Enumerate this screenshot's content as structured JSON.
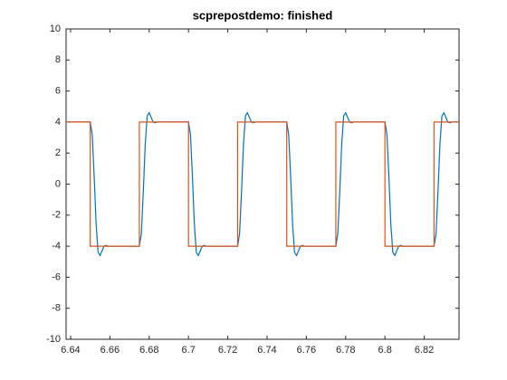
{
  "chart_data": {
    "type": "line",
    "title": "scprepostdemo: finished",
    "xlim": [
      6.6377,
      6.8377
    ],
    "ylim": [
      -10,
      10
    ],
    "xticks": [
      6.64,
      6.66,
      6.68,
      6.7,
      6.72,
      6.74,
      6.76,
      6.78,
      6.8,
      6.82
    ],
    "yticks": [
      -10,
      -8,
      -6,
      -4,
      -2,
      0,
      2,
      4,
      6,
      8,
      10
    ],
    "grid": false,
    "series": [
      {
        "color": "#0072BD",
        "x": [
          6.6377,
          6.65,
          6.651,
          6.652,
          6.653,
          6.654,
          6.655,
          6.656,
          6.657,
          6.658,
          6.659,
          6.66,
          6.675,
          6.676,
          6.677,
          6.678,
          6.679,
          6.68,
          6.681,
          6.682,
          6.683,
          6.684,
          6.685,
          6.7,
          6.701,
          6.702,
          6.703,
          6.704,
          6.705,
          6.706,
          6.707,
          6.708,
          6.709,
          6.71,
          6.725,
          6.726,
          6.727,
          6.728,
          6.729,
          6.73,
          6.731,
          6.732,
          6.733,
          6.734,
          6.735,
          6.75,
          6.751,
          6.752,
          6.753,
          6.754,
          6.755,
          6.756,
          6.757,
          6.758,
          6.759,
          6.76,
          6.775,
          6.776,
          6.777,
          6.778,
          6.779,
          6.78,
          6.781,
          6.782,
          6.783,
          6.784,
          6.785,
          6.8,
          6.801,
          6.802,
          6.803,
          6.804,
          6.805,
          6.806,
          6.807,
          6.808,
          6.809,
          6.81,
          6.825,
          6.826,
          6.827,
          6.828,
          6.829,
          6.83,
          6.831,
          6.832,
          6.833,
          6.834,
          6.835,
          6.8377
        ],
        "values": [
          4,
          4,
          3.2,
          0.5,
          -2.6,
          -4.4,
          -4.6,
          -4.3,
          -4,
          -3.95,
          -4,
          -4,
          -4,
          -3.2,
          -0.5,
          2.6,
          4.4,
          4.6,
          4.3,
          4,
          3.95,
          4,
          4,
          4,
          3.2,
          0.5,
          -2.6,
          -4.4,
          -4.6,
          -4.3,
          -4,
          -3.95,
          -4,
          -4,
          -4,
          -3.2,
          -0.5,
          2.6,
          4.4,
          4.6,
          4.3,
          4,
          3.95,
          4,
          4,
          4,
          3.2,
          0.5,
          -2.6,
          -4.4,
          -4.6,
          -4.3,
          -4,
          -3.95,
          -4,
          -4,
          -4,
          -3.2,
          -0.5,
          2.6,
          4.4,
          4.6,
          4.3,
          4,
          3.95,
          4,
          4,
          4,
          3.2,
          0.5,
          -2.6,
          -4.4,
          -4.6,
          -4.3,
          -4,
          -3.95,
          -4,
          -4,
          -4,
          -3.2,
          -0.5,
          2.6,
          4.4,
          4.6,
          4.3,
          4,
          3.95,
          4,
          4,
          4
        ]
      },
      {
        "color": "#D95319",
        "x": [
          6.6377,
          6.65,
          6.65,
          6.675,
          6.675,
          6.7,
          6.7,
          6.725,
          6.725,
          6.75,
          6.75,
          6.775,
          6.775,
          6.8,
          6.8,
          6.825,
          6.825,
          6.8377
        ],
        "values": [
          4,
          4,
          -4,
          -4,
          4,
          4,
          -4,
          -4,
          4,
          4,
          -4,
          -4,
          4,
          4,
          -4,
          -4,
          4,
          4
        ]
      }
    ]
  }
}
